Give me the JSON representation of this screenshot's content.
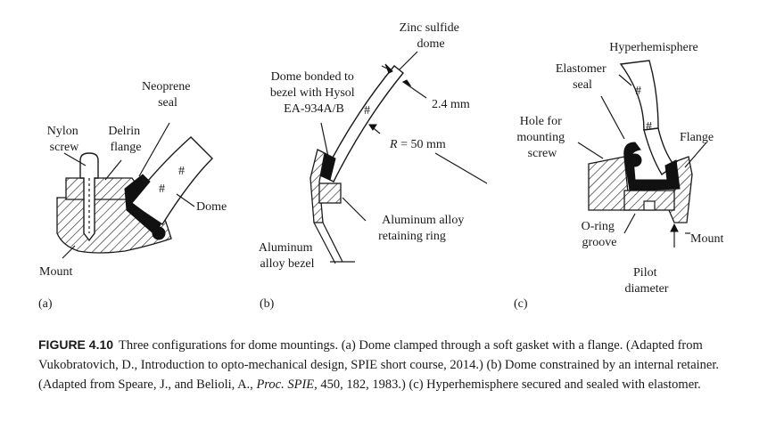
{
  "panel_a": {
    "panel_label": "(a)",
    "labels": {
      "neoprene_seal": [
        "Neoprene",
        "seal"
      ],
      "nylon_screw": [
        "Nylon",
        "screw"
      ],
      "delrin_flange": [
        "Delrin",
        "flange"
      ],
      "dome": "Dome",
      "mount": "Mount"
    }
  },
  "panel_b": {
    "panel_label": "(b)",
    "labels": {
      "zinc_sulfide_dome": [
        "Zinc sulfide",
        "dome"
      ],
      "dome_bonded": [
        "Dome bonded to",
        "bezel with Hysol",
        "EA-934A/B"
      ],
      "thickness": "2.4 mm",
      "radius_symbol": "R",
      "radius_value": " = 50 mm",
      "retaining_ring": [
        "Aluminum alloy",
        "retaining ring"
      ],
      "bezel": [
        "Aluminum",
        "alloy bezel"
      ]
    }
  },
  "panel_c": {
    "panel_label": "(c)",
    "labels": {
      "hyperhemisphere": "Hyperhemisphere",
      "elastomer_seal": [
        "Elastomer",
        "seal"
      ],
      "hole_for_screw": [
        "Hole for",
        "mounting",
        "screw"
      ],
      "flange": "Flange",
      "oring_groove": [
        "O-ring",
        "groove"
      ],
      "mount": "Mount",
      "pilot_diameter": [
        "Pilot",
        "diameter"
      ]
    }
  },
  "caption": {
    "figure_number": "FIGURE 4.10",
    "text_1": "Three configurations for dome mountings. (a) Dome clamped through a soft gasket with a flange. (Adapted from Vukobratovich, D., Introduction to opto-mechanical design, SPIE short course, 2014.) (b) Dome constrained by an internal retainer. (Adapted from Speare, J., and Belioli, A., ",
    "journal": "Proc. SPIE",
    "text_2": ", 450, 182, 1983.) (c) Hyperhemisphere secured and sealed with elastomer."
  }
}
